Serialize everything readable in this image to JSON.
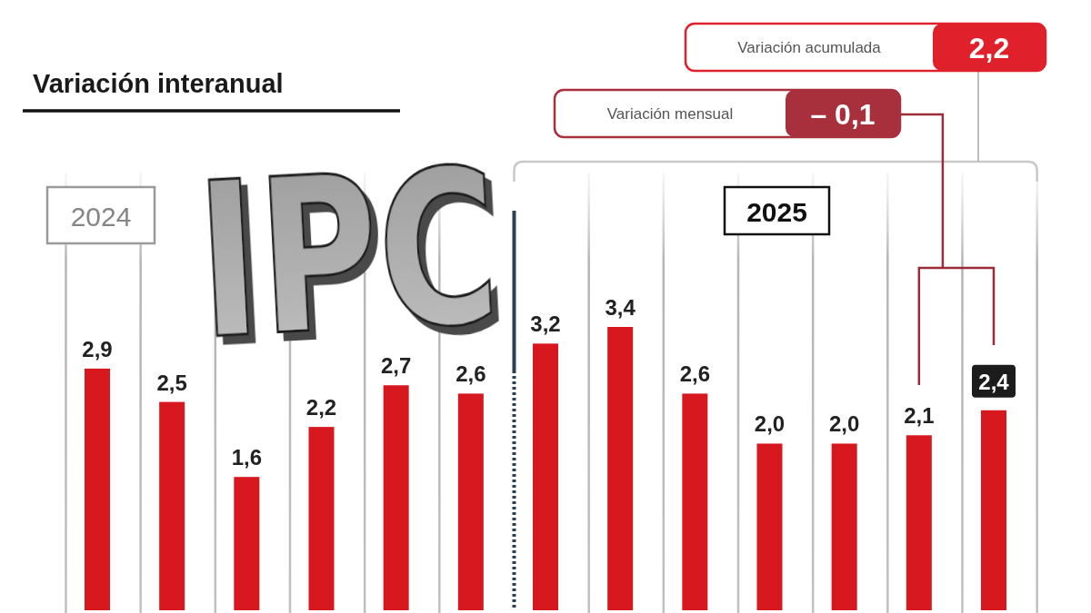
{
  "chart_data": {
    "type": "bar",
    "title": "IPC",
    "subtitle": "Variación interanual",
    "categories": [
      null,
      null,
      null,
      null,
      null,
      null,
      null,
      null,
      null,
      null,
      null,
      null,
      null
    ],
    "values": [
      2.9,
      2.5,
      1.6,
      2.2,
      2.7,
      2.6,
      3.2,
      3.4,
      2.6,
      2.0,
      2.0,
      2.1,
      2.4
    ],
    "color": "#d7191f",
    "value_labels": [
      "2,9",
      "2,5",
      "1,6",
      "2,2",
      "2,7",
      "2,6",
      "3,2",
      "3,4",
      "2,6",
      "2,0",
      "2,0",
      "2,1",
      "2,4"
    ],
    "grid": "x",
    "annotations": [
      "2024",
      "2025",
      "Variación mensual",
      "– 0,1",
      "Variación acumulada",
      "2,2"
    ]
  }
}
